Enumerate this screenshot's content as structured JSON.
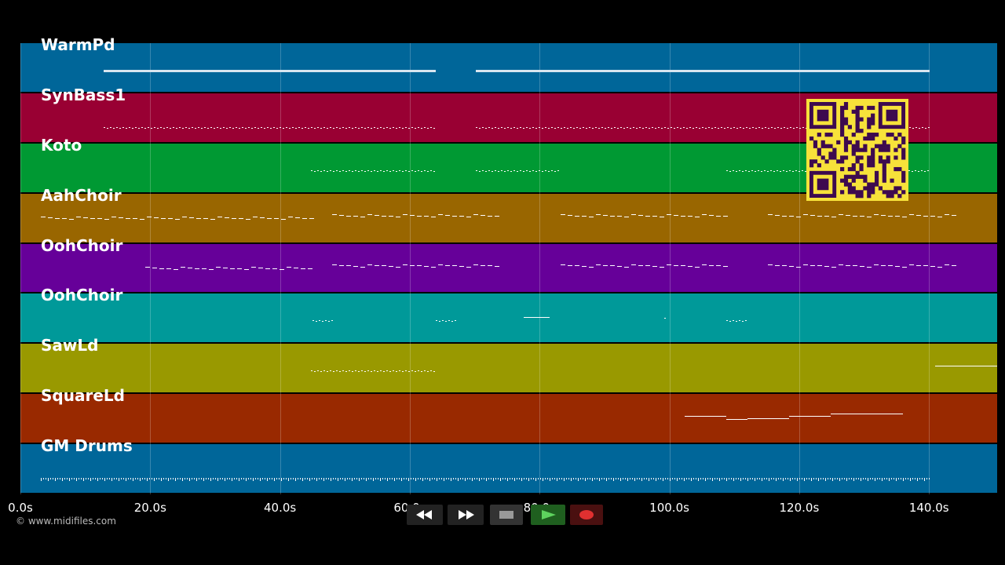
{
  "app": {
    "copyright": "© www.midifiles.com"
  },
  "colors": {
    "background": "#000000",
    "note": "#ffffff",
    "qr_fg": "#3d0a4f",
    "qr_bg": "#f7e23a"
  },
  "timeline": {
    "max_seconds": 150.5,
    "ticks": [
      {
        "seconds": 0,
        "label": "0.0s"
      },
      {
        "seconds": 20,
        "label": "20.0s"
      },
      {
        "seconds": 40,
        "label": "40.0s"
      },
      {
        "seconds": 60,
        "label": "60.0s"
      },
      {
        "seconds": 80,
        "label": "80.0s"
      },
      {
        "seconds": 100,
        "label": "100.0s"
      },
      {
        "seconds": 120,
        "label": "120.0s"
      },
      {
        "seconds": 140,
        "label": "140.0s"
      }
    ]
  },
  "tracks": [
    {
      "name": "WarmPd",
      "color": "#006699"
    },
    {
      "name": "SynBass1",
      "color": "#990033"
    },
    {
      "name": "Koto",
      "color": "#009933"
    },
    {
      "name": "AahChoir",
      "color": "#996600"
    },
    {
      "name": "OohChoir",
      "color": "#660099"
    },
    {
      "name": "OohChoir",
      "color": "#009999"
    },
    {
      "name": "SawLd",
      "color": "#999900"
    },
    {
      "name": "SquareLd",
      "color": "#992900"
    },
    {
      "name": "GM Drums",
      "color": "#006699"
    }
  ],
  "notes": [
    {
      "track": 0,
      "start": 12.8,
      "end": 64.0,
      "pitch": 0.55,
      "style": "solid"
    },
    {
      "track": 0,
      "start": 70.2,
      "end": 140.1,
      "pitch": 0.55,
      "style": "solid"
    },
    {
      "track": 1,
      "start": 12.8,
      "end": 64.0,
      "pitch": 0.7,
      "style": "dots"
    },
    {
      "track": 1,
      "start": 70.2,
      "end": 140.1,
      "pitch": 0.7,
      "style": "dots"
    },
    {
      "track": 2,
      "start": 44.8,
      "end": 63.8,
      "pitch": 0.55,
      "style": "dots"
    },
    {
      "track": 2,
      "start": 70.2,
      "end": 82.8,
      "pitch": 0.55,
      "style": "dots"
    },
    {
      "track": 2,
      "start": 108.8,
      "end": 140.1,
      "pitch": 0.55,
      "style": "dots"
    },
    {
      "track": 3,
      "start": 3.2,
      "end": 44.8,
      "pitch": 0.5,
      "style": "dash"
    },
    {
      "track": 3,
      "start": 48.0,
      "end": 73.6,
      "pitch": 0.45,
      "style": "dash"
    },
    {
      "track": 3,
      "start": 83.2,
      "end": 108.8,
      "pitch": 0.45,
      "style": "dash"
    },
    {
      "track": 3,
      "start": 115.2,
      "end": 144.0,
      "pitch": 0.45,
      "style": "dash"
    },
    {
      "track": 4,
      "start": 19.2,
      "end": 44.8,
      "pitch": 0.5,
      "style": "dash"
    },
    {
      "track": 4,
      "start": 48.0,
      "end": 73.6,
      "pitch": 0.45,
      "style": "dash"
    },
    {
      "track": 4,
      "start": 83.2,
      "end": 108.8,
      "pitch": 0.45,
      "style": "dash"
    },
    {
      "track": 4,
      "start": 115.2,
      "end": 144.0,
      "pitch": 0.45,
      "style": "dash"
    },
    {
      "track": 5,
      "start": 45.0,
      "end": 48.2,
      "pitch": 0.55,
      "style": "dots"
    },
    {
      "track": 5,
      "start": 64.0,
      "end": 67.2,
      "pitch": 0.55,
      "style": "dots"
    },
    {
      "track": 5,
      "start": 77.5,
      "end": 81.6,
      "pitch": 0.48,
      "style": "solid"
    },
    {
      "track": 5,
      "start": 99.2,
      "end": 99.5,
      "pitch": 0.5,
      "style": "solid"
    },
    {
      "track": 5,
      "start": 108.8,
      "end": 112.0,
      "pitch": 0.55,
      "style": "dots"
    },
    {
      "track": 6,
      "start": 44.8,
      "end": 64.0,
      "pitch": 0.55,
      "style": "dots"
    },
    {
      "track": 6,
      "start": 141.0,
      "end": 150.5,
      "pitch": 0.45,
      "style": "solid"
    },
    {
      "track": 7,
      "start": 102.4,
      "end": 108.8,
      "pitch": 0.45,
      "style": "solid"
    },
    {
      "track": 7,
      "start": 108.8,
      "end": 112.0,
      "pitch": 0.52,
      "style": "solid"
    },
    {
      "track": 7,
      "start": 112.0,
      "end": 118.4,
      "pitch": 0.5,
      "style": "solid"
    },
    {
      "track": 7,
      "start": 118.4,
      "end": 124.8,
      "pitch": 0.45,
      "style": "solid"
    },
    {
      "track": 7,
      "start": 124.8,
      "end": 136.0,
      "pitch": 0.4,
      "style": "solid"
    },
    {
      "track": 8,
      "start": 3.2,
      "end": 140.1,
      "pitch": 0.7,
      "style": "drums"
    }
  ],
  "controls": [
    {
      "name": "rewind-button",
      "icon": "rewind-icon"
    },
    {
      "name": "fast-forward-button",
      "icon": "fast-forward-icon"
    },
    {
      "name": "stop-button",
      "icon": "stop-icon"
    },
    {
      "name": "play-button",
      "icon": "play-icon"
    },
    {
      "name": "record-button",
      "icon": "record-icon"
    }
  ]
}
